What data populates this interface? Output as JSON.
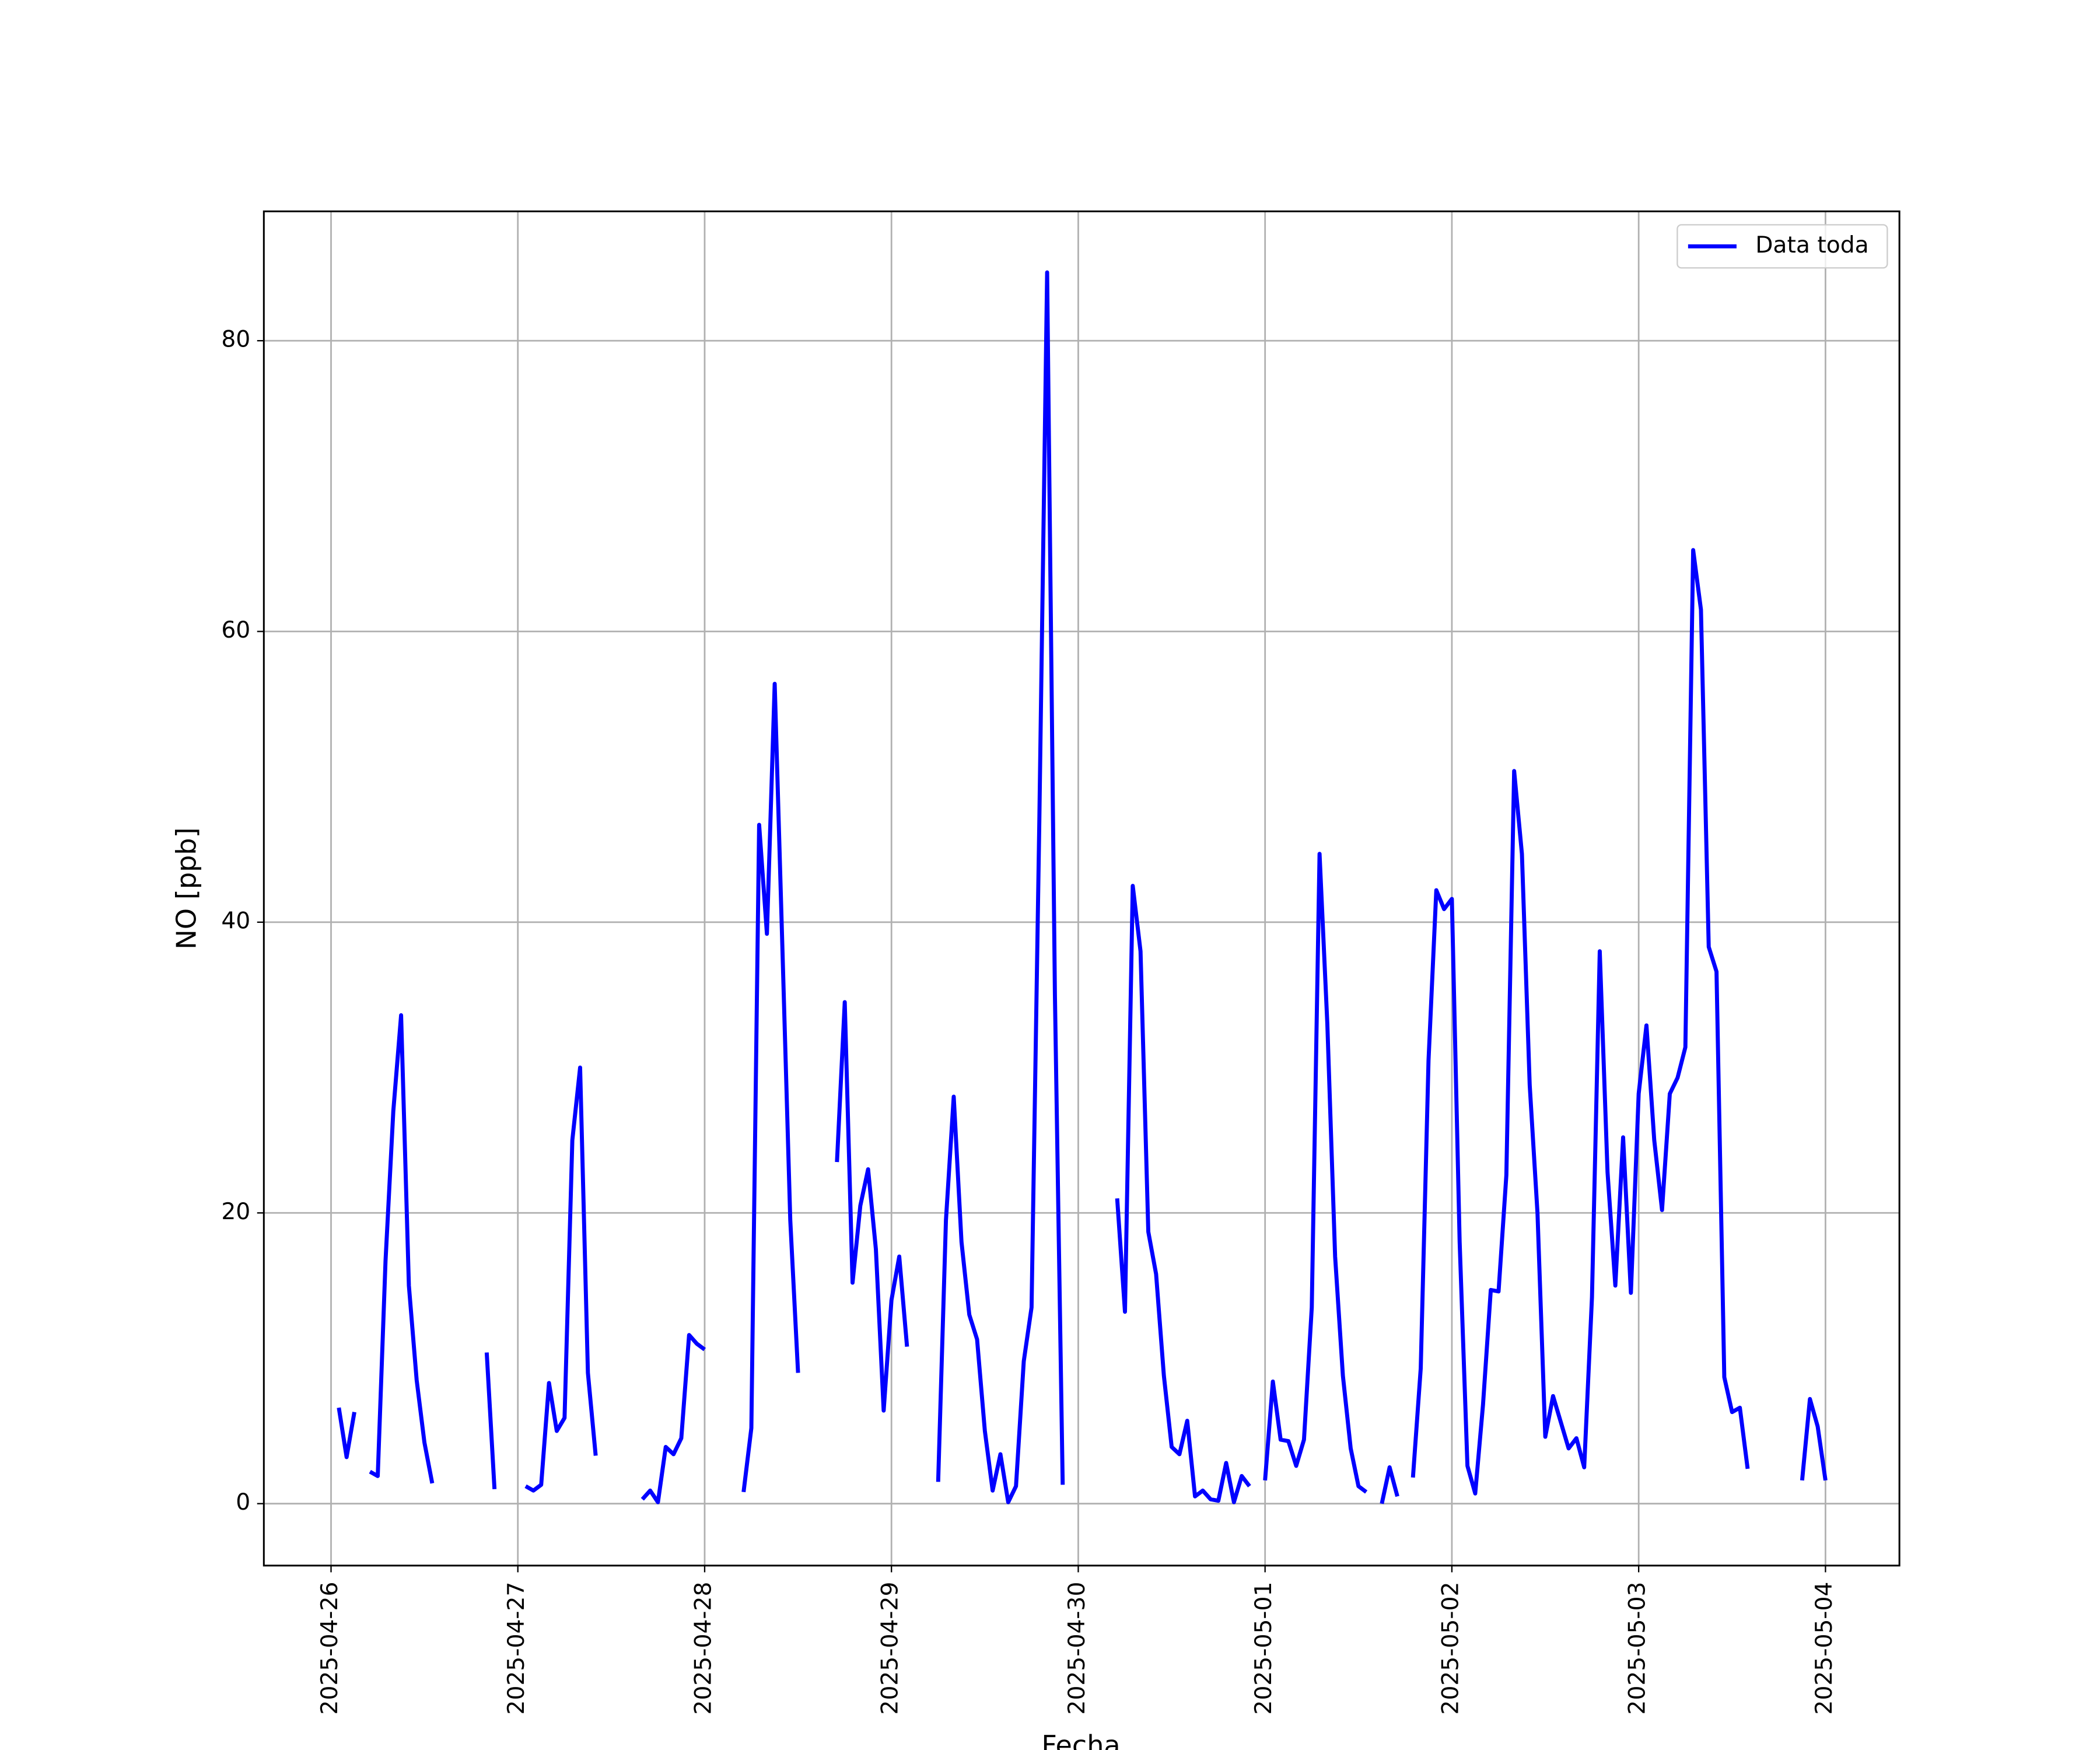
{
  "chart_data": {
    "type": "line",
    "xlabel": "Fecha",
    "ylabel": "NO [ppb]",
    "x": [
      "2025-04-26 01:00",
      "2025-04-26 02:00",
      "2025-04-26 03:00",
      "2025-04-26 04:00",
      "2025-04-26 05:00",
      "2025-04-26 06:00",
      "2025-04-26 07:00",
      "2025-04-26 08:00",
      "2025-04-26 09:00",
      "2025-04-26 10:00",
      "2025-04-26 11:00",
      "2025-04-26 12:00",
      "2025-04-26 13:00",
      "2025-04-26 14:00",
      "2025-04-26 15:00",
      "2025-04-26 16:00",
      "2025-04-26 17:00",
      "2025-04-26 18:00",
      "2025-04-26 19:00",
      "2025-04-26 20:00",
      "2025-04-26 21:00",
      "2025-04-26 22:00",
      "2025-04-26 23:00",
      "2025-04-27 00:00",
      "2025-04-27 01:00",
      "2025-04-27 02:00",
      "2025-04-27 03:00",
      "2025-04-27 04:00",
      "2025-04-27 05:00",
      "2025-04-27 06:00",
      "2025-04-27 07:00",
      "2025-04-27 08:00",
      "2025-04-27 09:00",
      "2025-04-27 10:00",
      "2025-04-27 11:00",
      "2025-04-27 12:00",
      "2025-04-27 13:00",
      "2025-04-27 14:00",
      "2025-04-27 15:00",
      "2025-04-27 16:00",
      "2025-04-27 17:00",
      "2025-04-27 18:00",
      "2025-04-27 19:00",
      "2025-04-27 20:00",
      "2025-04-27 21:00",
      "2025-04-27 22:00",
      "2025-04-27 23:00",
      "2025-04-28 00:00",
      "2025-04-28 01:00",
      "2025-04-28 02:00",
      "2025-04-28 03:00",
      "2025-04-28 04:00",
      "2025-04-28 05:00",
      "2025-04-28 06:00",
      "2025-04-28 07:00",
      "2025-04-28 08:00",
      "2025-04-28 09:00",
      "2025-04-28 10:00",
      "2025-04-28 11:00",
      "2025-04-28 12:00",
      "2025-04-28 13:00",
      "2025-04-28 14:00",
      "2025-04-28 15:00",
      "2025-04-28 16:00",
      "2025-04-28 17:00",
      "2025-04-28 18:00",
      "2025-04-28 19:00",
      "2025-04-28 20:00",
      "2025-04-28 21:00",
      "2025-04-28 22:00",
      "2025-04-28 23:00",
      "2025-04-29 00:00",
      "2025-04-29 01:00",
      "2025-04-29 02:00",
      "2025-04-29 03:00",
      "2025-04-29 04:00",
      "2025-04-29 05:00",
      "2025-04-29 06:00",
      "2025-04-29 07:00",
      "2025-04-29 08:00",
      "2025-04-29 09:00",
      "2025-04-29 10:00",
      "2025-04-29 11:00",
      "2025-04-29 12:00",
      "2025-04-29 13:00",
      "2025-04-29 14:00",
      "2025-04-29 15:00",
      "2025-04-29 16:00",
      "2025-04-29 17:00",
      "2025-04-29 18:00",
      "2025-04-29 19:00",
      "2025-04-29 20:00",
      "2025-04-29 21:00",
      "2025-04-29 22:00",
      "2025-04-29 23:00",
      "2025-04-30 00:00",
      "2025-04-30 01:00",
      "2025-04-30 02:00",
      "2025-04-30 03:00",
      "2025-04-30 04:00",
      "2025-04-30 05:00",
      "2025-04-30 06:00",
      "2025-04-30 07:00",
      "2025-04-30 08:00",
      "2025-04-30 09:00",
      "2025-04-30 10:00",
      "2025-04-30 11:00",
      "2025-04-30 12:00",
      "2025-04-30 13:00",
      "2025-04-30 14:00",
      "2025-04-30 15:00",
      "2025-04-30 16:00",
      "2025-04-30 17:00",
      "2025-04-30 18:00",
      "2025-04-30 19:00",
      "2025-04-30 20:00",
      "2025-04-30 21:00",
      "2025-04-30 22:00",
      "2025-04-30 23:00",
      "2025-05-01 00:00",
      "2025-05-01 01:00",
      "2025-05-01 02:00",
      "2025-05-01 03:00",
      "2025-05-01 04:00",
      "2025-05-01 05:00",
      "2025-05-01 06:00",
      "2025-05-01 07:00",
      "2025-05-01 08:00",
      "2025-05-01 09:00",
      "2025-05-01 10:00",
      "2025-05-01 11:00",
      "2025-05-01 12:00",
      "2025-05-01 13:00",
      "2025-05-01 14:00",
      "2025-05-01 15:00",
      "2025-05-01 16:00",
      "2025-05-01 17:00",
      "2025-05-01 18:00",
      "2025-05-01 19:00",
      "2025-05-01 20:00",
      "2025-05-01 21:00",
      "2025-05-01 22:00",
      "2025-05-01 23:00",
      "2025-05-02 00:00",
      "2025-05-02 01:00",
      "2025-05-02 02:00",
      "2025-05-02 03:00",
      "2025-05-02 04:00",
      "2025-05-02 05:00",
      "2025-05-02 06:00",
      "2025-05-02 07:00",
      "2025-05-02 08:00",
      "2025-05-02 09:00",
      "2025-05-02 10:00",
      "2025-05-02 11:00",
      "2025-05-02 12:00",
      "2025-05-02 13:00",
      "2025-05-02 14:00",
      "2025-05-02 15:00",
      "2025-05-02 16:00",
      "2025-05-02 17:00",
      "2025-05-02 18:00",
      "2025-05-02 19:00",
      "2025-05-02 20:00",
      "2025-05-02 21:00",
      "2025-05-02 22:00",
      "2025-05-02 23:00",
      "2025-05-03 00:00",
      "2025-05-03 01:00",
      "2025-05-03 02:00",
      "2025-05-03 03:00",
      "2025-05-03 04:00",
      "2025-05-03 05:00",
      "2025-05-03 06:00",
      "2025-05-03 07:00",
      "2025-05-03 08:00",
      "2025-05-03 09:00",
      "2025-05-03 10:00",
      "2025-05-03 11:00",
      "2025-05-03 12:00",
      "2025-05-03 13:00",
      "2025-05-03 14:00",
      "2025-05-03 15:00",
      "2025-05-03 16:00",
      "2025-05-03 17:00",
      "2025-05-03 18:00",
      "2025-05-03 19:00",
      "2025-05-03 20:00",
      "2025-05-03 21:00",
      "2025-05-03 22:00",
      "2025-05-03 23:00",
      "2025-05-04 00:00"
    ],
    "series": [
      {
        "name": "Data toda",
        "color": "#0000ff",
        "values": [
          6.6,
          3.2,
          6.3,
          null,
          2.2,
          1.9,
          16.7,
          27,
          33.6,
          15,
          8.5,
          4.2,
          1.4,
          null,
          null,
          null,
          null,
          null,
          null,
          10.4,
          1.0,
          null,
          null,
          null,
          1.2,
          0.9,
          1.3,
          8.3,
          5.0,
          5.9,
          25,
          30,
          9,
          3.3,
          null,
          null,
          null,
          null,
          null,
          0.3,
          0.9,
          0.1,
          3.9,
          3.4,
          4.5,
          11.6,
          11.0,
          10.6,
          null,
          null,
          null,
          null,
          0.8,
          5.2,
          46.7,
          39.2,
          56.4,
          38,
          19.5,
          9,
          null,
          null,
          null,
          null,
          23.5,
          34.5,
          15.2,
          20.5,
          23,
          17.5,
          6.4,
          14,
          17,
          10.8,
          null,
          null,
          null,
          1.5,
          19.5,
          28,
          18,
          13,
          11.3,
          5,
          0.9,
          3.4,
          0.1,
          1.2,
          9.8,
          13.5,
          47,
          84.7,
          35,
          1.3,
          null,
          null,
          null,
          null,
          null,
          null,
          21,
          13.2,
          42.5,
          38,
          18.7,
          15.8,
          8.8,
          3.9,
          3.4,
          5.7,
          0.5,
          0.9,
          0.3,
          0.2,
          2.8,
          0.1,
          1.9,
          1.2,
          null,
          1.6,
          8.4,
          4.4,
          4.3,
          2.6,
          4.4,
          13.5,
          44.7,
          33,
          17,
          8.8,
          3.8,
          1.2,
          0.8,
          null,
          0,
          2.5,
          0.5,
          null,
          1.8,
          9.3,
          30.5,
          42.2,
          40.9,
          41.6,
          18,
          2.6,
          0.7,
          6.8,
          14.7,
          14.6,
          22.6,
          50.4,
          44.7,
          28.8,
          20,
          4.6,
          7.4,
          5.6,
          3.8,
          4.5,
          2.5,
          14.2,
          38,
          22.8,
          15,
          25.2,
          14.5,
          28.2,
          32.9,
          25,
          20.2,
          28.2,
          29.3,
          31.4,
          65.6,
          61.5,
          38.3,
          36.6,
          8.7,
          6.3,
          6.6,
          2.4,
          null,
          null,
          null,
          null,
          null,
          null,
          1.6,
          7.2,
          5.3,
          1.6
        ]
      }
    ],
    "xlim": [
      "2025-04-25 15:22",
      "2025-05-04 09:30"
    ],
    "xticks": [
      "2025-04-26",
      "2025-04-27",
      "2025-04-28",
      "2025-04-29",
      "2025-04-30",
      "2025-05-01",
      "2025-05-02",
      "2025-05-03",
      "2025-05-04"
    ],
    "ylim": [
      -4.26,
      88.9
    ],
    "yticks": [
      0,
      20,
      40,
      60,
      80
    ],
    "grid": true,
    "legend": "upper right"
  }
}
